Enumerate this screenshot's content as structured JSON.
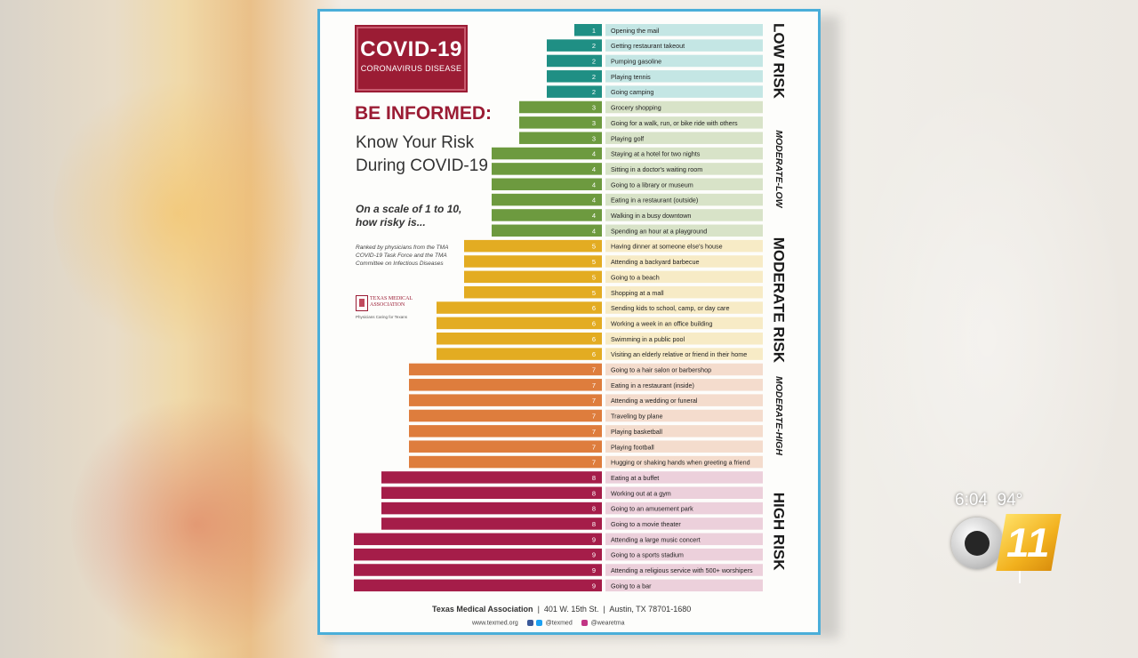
{
  "badge": {
    "title": "COVID-19",
    "subtitle": "CORONAVIRUS DISEASE"
  },
  "headline": "BE INFORMED:",
  "subheadline": "Know Your Risk During COVID-19",
  "scale_text": "On a scale of 1 to 10, how risky is...",
  "ranked_text": "Ranked by physicians from the TMA COVID-19 Task Force and the TMA Committee on Infectious Diseases",
  "logo": {
    "name": "TEXAS MEDICAL ASSOCIATION",
    "tagline": "Physicians Caring for Texans"
  },
  "footer": {
    "org": "Texas Medical Association",
    "address": "401 W. 15th St.",
    "city": "Austin, TX 78701-1680",
    "website": "www.texmed.org",
    "social1": "@texmed",
    "social2": "@wearetma"
  },
  "broadcast": {
    "time": "6:04",
    "temp": "94°",
    "channel_number": "11"
  },
  "chart_data": {
    "type": "bar",
    "orientation": "horizontal",
    "title": "",
    "xlabel": "",
    "ylabel": "",
    "xlim": [
      0,
      9
    ],
    "categories": [
      "Opening the mail",
      "Getting restaurant takeout",
      "Pumping gasoline",
      "Playing tennis",
      "Going camping",
      "Grocery shopping",
      "Going for a walk, run, or bike ride with others",
      "Playing golf",
      "Staying at a hotel for two nights",
      "Sitting in a doctor's waiting room",
      "Going to a library or museum",
      "Eating in a restaurant (outside)",
      "Walking in a busy downtown",
      "Spending an hour at a playground",
      "Having dinner at someone else's house",
      "Attending a backyard barbecue",
      "Going to a beach",
      "Shopping at a mall",
      "Sending kids to school, camp, or day care",
      "Working a week in an office building",
      "Swimming in a public pool",
      "Visiting an elderly relative or friend in their home",
      "Going to a hair salon or barbershop",
      "Eating in a restaurant (inside)",
      "Attending a wedding or funeral",
      "Traveling by plane",
      "Playing basketball",
      "Playing football",
      "Hugging or shaking hands when greeting a friend",
      "Eating at a buffet",
      "Working out at a gym",
      "Going to an amusement park",
      "Going to a movie theater",
      "Attending a large music concert",
      "Going to a sports stadium",
      "Attending a religious service with 500+ worshipers",
      "Going to a bar"
    ],
    "values": [
      1,
      2,
      2,
      2,
      2,
      3,
      3,
      3,
      4,
      4,
      4,
      4,
      4,
      4,
      5,
      5,
      5,
      5,
      6,
      6,
      6,
      6,
      7,
      7,
      7,
      7,
      7,
      7,
      7,
      8,
      8,
      8,
      8,
      9,
      9,
      9,
      9
    ],
    "bar_colors": {
      "1": "#1f8f84",
      "2": "#1f8f84",
      "3": "#6d9a3f",
      "4": "#6d9a3f",
      "5": "#e3ac22",
      "6": "#e3ac22",
      "7": "#de7d3d",
      "8": "#a51d49",
      "9": "#a51d49"
    },
    "risk_bands": [
      {
        "label": "LOW RISK",
        "start": 0,
        "end": 4,
        "color": "#c4e6e4"
      },
      {
        "label": "MODERATE-LOW",
        "start": 5,
        "end": 13,
        "color": "#d8e3c8"
      },
      {
        "label": "MODERATE RISK",
        "start": 14,
        "end": 21,
        "color": "#f7ebc6"
      },
      {
        "label": "MODERATE-HIGH",
        "start": 22,
        "end": 28,
        "color": "#f4dccd"
      },
      {
        "label": "HIGH RISK",
        "start": 29,
        "end": 36,
        "color": "#ecd0db"
      }
    ]
  }
}
